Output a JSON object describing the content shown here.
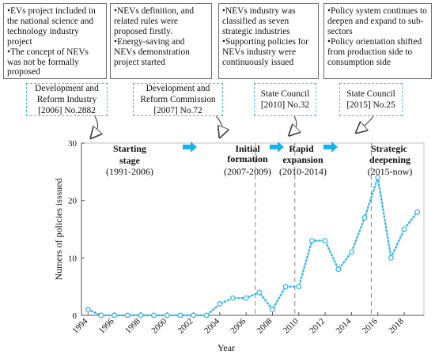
{
  "policy_boxes": [
    {
      "lines": [
        "•EVs project included in the national science and technology industry project",
        "•The concept of NEVs was not be formally proposed"
      ]
    },
    {
      "lines": [
        "•NEVs definition, and related rules were proposed firstly.",
        "•Energy-saving and NEVs demonstration project started"
      ]
    },
    {
      "lines": [
        "•NEVs industry was classified as seven strategic industries",
        "•Supporting policies for NEVs industry were continuously issued"
      ]
    },
    {
      "lines": [
        "•Policy system continues to deepen and expand to sub-sectors",
        "•Policy orientation shifted from production side to consumption side"
      ]
    }
  ],
  "citation_boxes": [
    {
      "lines": [
        "Development and",
        "Reform Industry",
        "[2006] No.2882"
      ]
    },
    {
      "lines": [
        "Development and",
        "Reform Commission",
        "[2007] No.72"
      ]
    },
    {
      "lines": [
        "State Council",
        "[2010] No.32"
      ]
    },
    {
      "lines": [
        "State Council",
        "[2015] No.25"
      ]
    }
  ],
  "stages": [
    {
      "name_lines": [
        "Starting",
        "stage"
      ],
      "years": "(1991-2006)"
    },
    {
      "name_lines": [
        "Initial",
        "formation"
      ],
      "years": "(2007-2009)"
    },
    {
      "name_lines": [
        "Rapid",
        "expansion"
      ],
      "years": "(2010-2014)"
    },
    {
      "name_lines": [
        "Strategic",
        "deepening"
      ],
      "years": "(2015-now)"
    }
  ],
  "colors": {
    "series": "#3db8e8",
    "stage_arrow": "#16b4ee",
    "divider": "#888888",
    "frame": "#bfbfbf",
    "policy_border": "#6d6d6d",
    "citation_border": "#4bb6e6",
    "curved_arrow": "#444444"
  },
  "chart_data": {
    "type": "line",
    "xlabel": "Year",
    "ylabel": "Numers of policies isssued",
    "xlim": [
      1993.5,
      2019.5
    ],
    "ylim": [
      0,
      30
    ],
    "x_ticks": [
      1994,
      1996,
      1998,
      2000,
      2002,
      2004,
      2006,
      2008,
      2010,
      2012,
      2014,
      2016,
      2018
    ],
    "y_ticks": [
      0,
      10,
      20,
      30
    ],
    "grid": false,
    "series": [
      {
        "x": [
          1994,
          1995,
          1996,
          1997,
          1998,
          1999,
          2000,
          2001,
          2002,
          2003,
          2004,
          2005,
          2006,
          2007,
          2008,
          2009,
          2010,
          2011,
          2012,
          2013,
          2014,
          2015,
          2016,
          2017,
          2018,
          2019
        ],
        "values": [
          1,
          0,
          0,
          0,
          0,
          0,
          0,
          0,
          0,
          0,
          2,
          3,
          3,
          4,
          1,
          5,
          5,
          13,
          13,
          8,
          11,
          17,
          24,
          10,
          15,
          18
        ],
        "line_style": "dotted",
        "marker": "open-circle"
      }
    ],
    "stage_dividers": [
      2006.7,
      2009.7,
      2015.5
    ]
  }
}
